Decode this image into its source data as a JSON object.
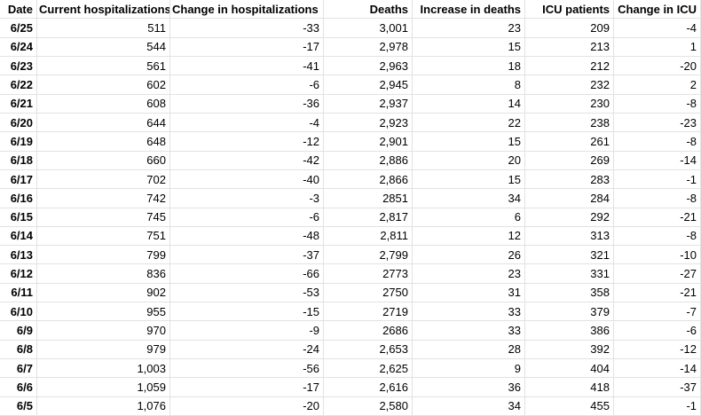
{
  "table": {
    "header": [
      "Date",
      "Current hospitalizations",
      "Change in hospitalizations",
      "Deaths",
      "Increase in deaths",
      "ICU patients",
      "Change in ICU"
    ],
    "rows": [
      [
        "6/25",
        "511",
        "-33",
        "3,001",
        "23",
        "209",
        "-4"
      ],
      [
        "6/24",
        "544",
        "-17",
        "2,978",
        "15",
        "213",
        "1"
      ],
      [
        "6/23",
        "561",
        "-41",
        "2,963",
        "18",
        "212",
        "-20"
      ],
      [
        "6/22",
        "602",
        "-6",
        "2,945",
        "8",
        "232",
        "2"
      ],
      [
        "6/21",
        "608",
        "-36",
        "2,937",
        "14",
        "230",
        "-8"
      ],
      [
        "6/20",
        "644",
        "-4",
        "2,923",
        "22",
        "238",
        "-23"
      ],
      [
        "6/19",
        "648",
        "-12",
        "2,901",
        "15",
        "261",
        "-8"
      ],
      [
        "6/18",
        "660",
        "-42",
        "2,886",
        "20",
        "269",
        "-14"
      ],
      [
        "6/17",
        "702",
        "-40",
        "2,866",
        "15",
        "283",
        "-1"
      ],
      [
        "6/16",
        "742",
        "-3",
        "2851",
        "34",
        "284",
        "-8"
      ],
      [
        "6/15",
        "745",
        "-6",
        "2,817",
        "6",
        "292",
        "-21"
      ],
      [
        "6/14",
        "751",
        "-48",
        "2,811",
        "12",
        "313",
        "-8"
      ],
      [
        "6/13",
        "799",
        "-37",
        "2,799",
        "26",
        "321",
        "-10"
      ],
      [
        "6/12",
        "836",
        "-66",
        "2773",
        "23",
        "331",
        "-27"
      ],
      [
        "6/11",
        "902",
        "-53",
        "2750",
        "31",
        "358",
        "-21"
      ],
      [
        "6/10",
        "955",
        "-15",
        "2719",
        "33",
        "379",
        "-7"
      ],
      [
        "6/9",
        "970",
        "-9",
        "2686",
        "33",
        "386",
        "-6"
      ],
      [
        "6/8",
        "979",
        "-24",
        "2,653",
        "28",
        "392",
        "-12"
      ],
      [
        "6/7",
        "1,003",
        "-56",
        "2,625",
        "9",
        "404",
        "-14"
      ],
      [
        "6/6",
        "1,059",
        "-17",
        "2,616",
        "36",
        "418",
        "-37"
      ],
      [
        "6/5",
        "1,076",
        "-20",
        "2,580",
        "34",
        "455",
        "-1"
      ]
    ]
  }
}
